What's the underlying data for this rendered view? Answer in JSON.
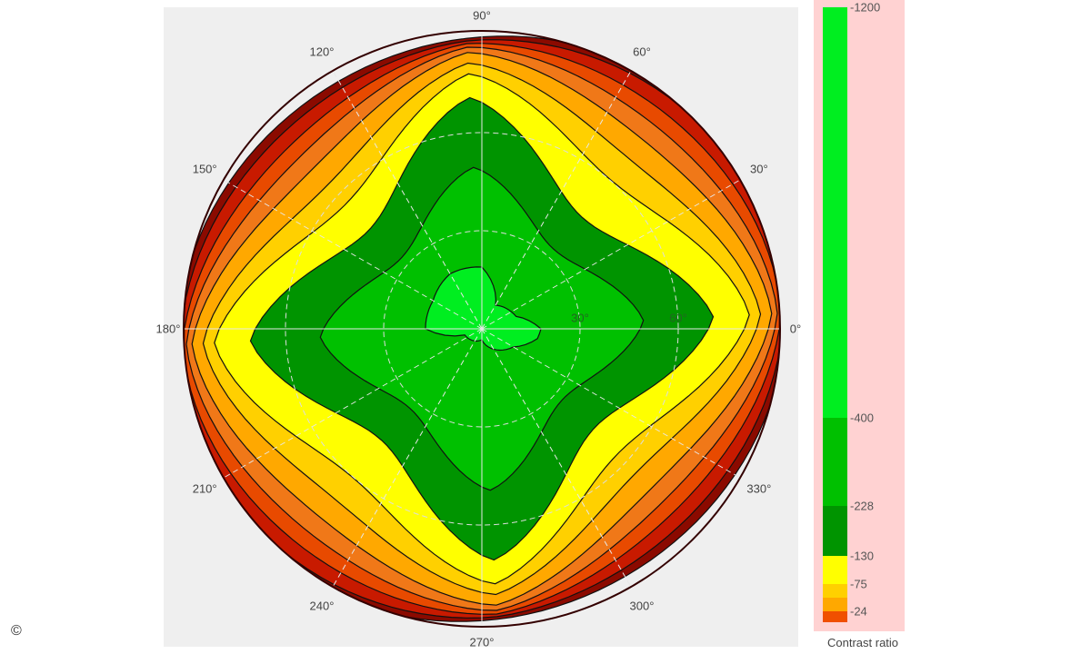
{
  "chart_data": {
    "type": "heatmap",
    "subtype": "polar-contour",
    "title": "",
    "angle_labels": [
      "0°",
      "30°",
      "60°",
      "90°",
      "120°",
      "150°",
      "180°",
      "210°",
      "240°",
      "270°",
      "300°",
      "330°"
    ],
    "radial_labels": [
      "30°",
      "60°"
    ],
    "radial_range": [
      0,
      90
    ],
    "colorbar": {
      "title": "Contrast ratio",
      "ticks": [
        "1200",
        "400",
        "228",
        "130",
        "75",
        "24"
      ],
      "tick_values": [
        1200,
        400,
        228,
        130,
        75,
        24
      ]
    },
    "bands": [
      {
        "min": 1,
        "color": "#8b0a00"
      },
      {
        "min": 5,
        "color": "#c81a00"
      },
      {
        "min": 12,
        "color": "#e84a00"
      },
      {
        "min": 24,
        "color": "#f07818"
      },
      {
        "min": 45,
        "color": "#ffa800"
      },
      {
        "min": 75,
        "color": "#ffd000"
      },
      {
        "min": 100,
        "color": "#ffff00"
      },
      {
        "min": 130,
        "color": "#009400"
      },
      {
        "min": 228,
        "color": "#00c000"
      },
      {
        "min": 400,
        "color": "#00ee20"
      }
    ]
  },
  "copyright": "©"
}
